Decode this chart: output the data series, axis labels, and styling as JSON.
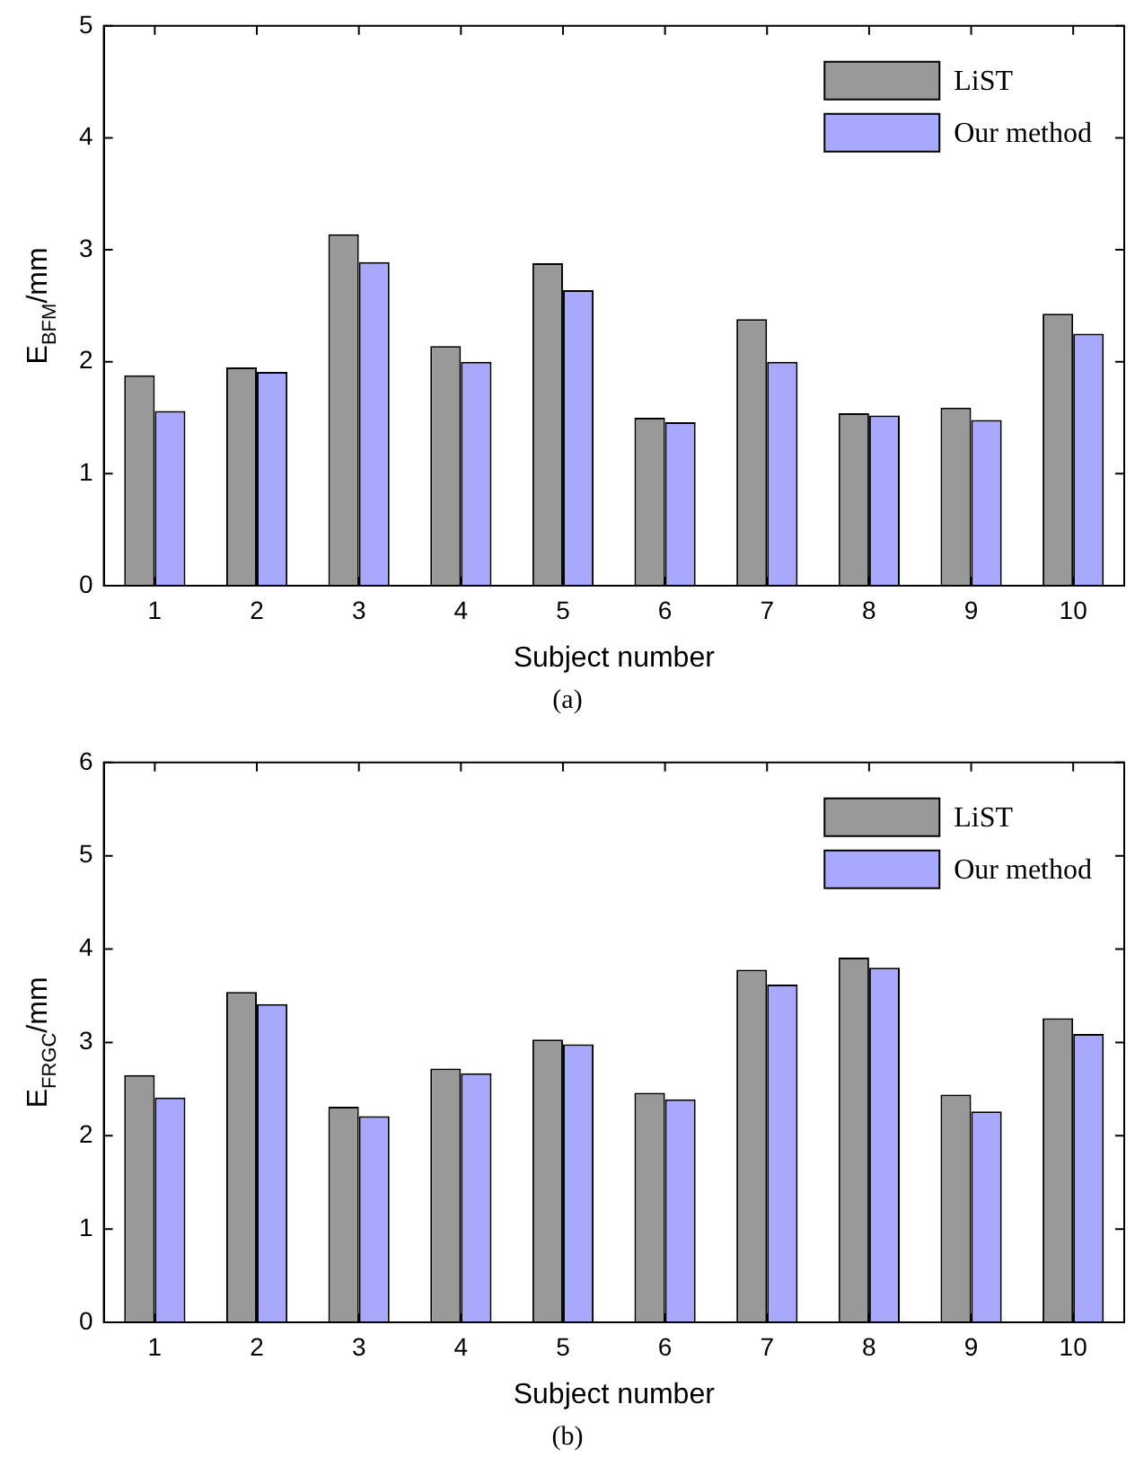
{
  "chart_data": [
    {
      "type": "bar",
      "categories": [
        "1",
        "2",
        "3",
        "4",
        "5",
        "6",
        "7",
        "8",
        "9",
        "10"
      ],
      "xlabel": "Subject number",
      "ylabel": "E$_{BFM}$/mm",
      "ylim": [
        0,
        5
      ],
      "yticks": [
        0,
        1,
        2,
        3,
        4,
        5
      ],
      "grid": false,
      "legend": "top right",
      "annotations": [
        "(a)"
      ],
      "series": [
        {
          "name": "LiST",
          "color": "#999999",
          "values": [
            1.88,
            1.95,
            3.14,
            2.14,
            2.88,
            1.5,
            2.38,
            1.54,
            1.59,
            2.43
          ]
        },
        {
          "name": "Our method",
          "color": "#a8a8fc",
          "values": [
            1.56,
            1.91,
            2.89,
            2.0,
            2.64,
            1.46,
            2.0,
            1.52,
            1.48,
            2.25
          ]
        }
      ]
    },
    {
      "type": "bar",
      "categories": [
        "1",
        "2",
        "3",
        "4",
        "5",
        "6",
        "7",
        "8",
        "9",
        "10"
      ],
      "xlabel": "Subject number",
      "ylabel": "E$_{FRGC}$/mm",
      "ylim": [
        0,
        6
      ],
      "yticks": [
        0,
        1,
        2,
        3,
        4,
        5,
        6
      ],
      "grid": false,
      "legend": "top right",
      "annotations": [
        "(b)"
      ],
      "series": [
        {
          "name": "LiST",
          "color": "#999999",
          "values": [
            2.65,
            3.54,
            2.31,
            2.72,
            3.03,
            2.46,
            3.78,
            3.91,
            2.44,
            3.26
          ]
        },
        {
          "name": "Our method",
          "color": "#a8a8fc",
          "values": [
            2.41,
            3.41,
            2.21,
            2.67,
            2.98,
            2.39,
            3.62,
            3.8,
            2.26,
            3.09
          ]
        }
      ]
    }
  ]
}
